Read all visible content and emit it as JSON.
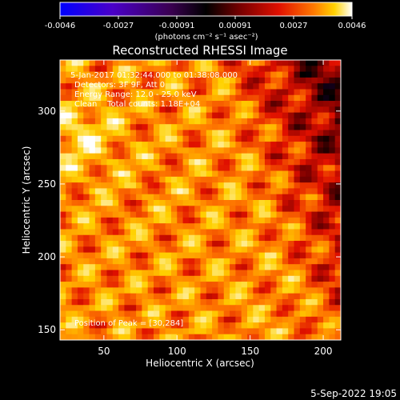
{
  "chart_data": {
    "type": "heatmap",
    "title": "Reconstructed RHESSI Image",
    "xlabel": "Heliocentric X (arcsec)",
    "ylabel": "Heliocentric Y (arcsec)",
    "xlim": [
      20,
      212
    ],
    "ylim": [
      143,
      335
    ],
    "x_ticks": [
      50,
      100,
      150,
      200
    ],
    "y_ticks": [
      150,
      200,
      250,
      300
    ],
    "colorbar": {
      "min": -0.0046,
      "max": 0.0046,
      "ticks": [
        "-0.0046",
        "-0.0027",
        "-0.00091",
        "0.00091",
        "0.0027",
        "0.0046"
      ],
      "label": "(photons cm⁻² s⁻¹ asec⁻²)",
      "colormap": [
        "#0000ff",
        "#4a00c8",
        "#3a0050",
        "#000000",
        "#7a0000",
        "#e01000",
        "#ff7a00",
        "#ffd200",
        "#ffffff"
      ]
    },
    "info_lines": [
      "5-Jan-2017 01:32:44.000 to 01:38:08.000",
      "Detectors: 3F 9F, Att 0",
      "Energy Range: 12.0 - 25.0 keV",
      "Clean    Total counts: 1.18E+04"
    ],
    "peak": {
      "x": 30,
      "y": 284,
      "label": "Position of Peak = [30,284]"
    },
    "grid": false
  },
  "footer": {
    "date": "5-Sep-2022 19:05"
  }
}
